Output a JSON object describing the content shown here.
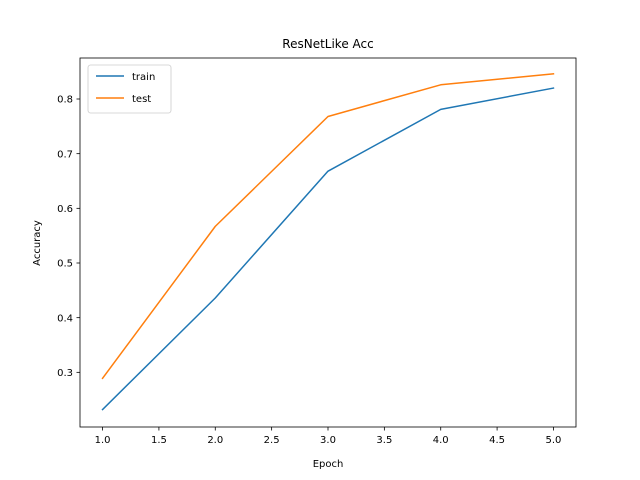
{
  "chart_data": {
    "type": "line",
    "title": "ResNetLike Acc",
    "xlabel": "Epoch",
    "ylabel": "Accuracy",
    "x": [
      1.0,
      2.0,
      3.0,
      4.0,
      5.0
    ],
    "xlim": [
      0.8,
      5.2
    ],
    "ylim": [
      0.2,
      0.875
    ],
    "xticks": [
      1.0,
      1.5,
      2.0,
      2.5,
      3.0,
      3.5,
      4.0,
      4.5,
      5.0
    ],
    "xtick_labels": [
      "1.0",
      "1.5",
      "2.0",
      "2.5",
      "3.0",
      "3.5",
      "4.0",
      "4.5",
      "5.0"
    ],
    "yticks": [
      0.3,
      0.4,
      0.5,
      0.6,
      0.7,
      0.8
    ],
    "ytick_labels": [
      "0.3",
      "0.4",
      "0.5",
      "0.6",
      "0.7",
      "0.8"
    ],
    "grid": false,
    "legend": "top-left",
    "series": [
      {
        "name": "train",
        "color": "#1f77b4",
        "values": [
          0.232,
          0.436,
          0.668,
          0.781,
          0.82
        ]
      },
      {
        "name": "test",
        "color": "#ff7f0e",
        "values": [
          0.289,
          0.567,
          0.768,
          0.826,
          0.846
        ]
      }
    ]
  }
}
